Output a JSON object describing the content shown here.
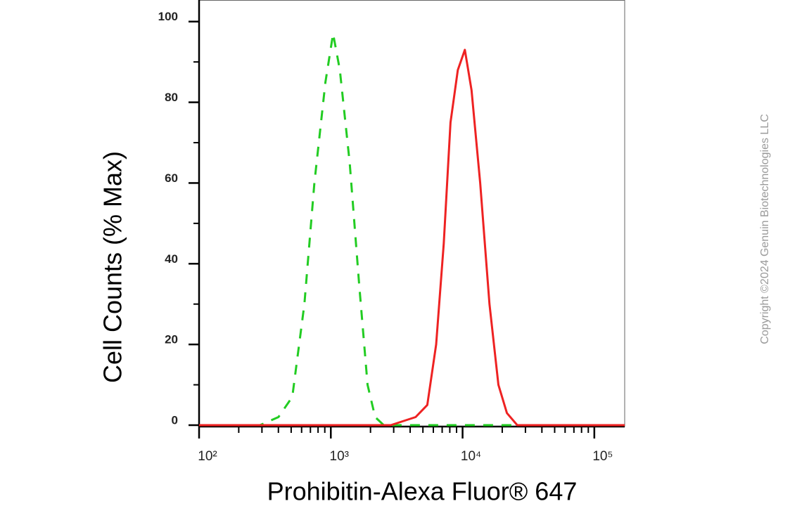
{
  "chart_data": {
    "type": "line",
    "y_label": "Cell Counts (% Max)",
    "x_label": "Prohibitin-Alexa Fluor® 647",
    "watermark": "Copyright ©2024 Genuin Biotechnologies LLC",
    "xscale": "log",
    "xlim": [
      100,
      170000
    ],
    "xticks": [
      {
        "value": 100,
        "label": "10²"
      },
      {
        "value": 1000,
        "label": "10³"
      },
      {
        "value": 10000,
        "label": "10⁴"
      },
      {
        "value": 100000,
        "label": "10⁵"
      }
    ],
    "xminorticks": [
      200,
      300,
      400,
      500,
      600,
      700,
      800,
      900,
      2000,
      3000,
      4000,
      5000,
      6000,
      7000,
      8000,
      9000,
      20000,
      30000,
      40000,
      50000,
      60000,
      70000,
      80000,
      90000
    ],
    "ylim": [
      0,
      105
    ],
    "yticks": [
      0,
      20,
      40,
      60,
      80,
      100
    ],
    "yminorticks": [
      10,
      30,
      50,
      70,
      90
    ],
    "series": [
      {
        "color": "#22cc22",
        "dash": "dashed",
        "x": [
          100,
          290,
          400,
          510,
          630,
          750,
          910,
          1040,
          1170,
          1390,
          1640,
          1900,
          2170,
          2520,
          170000
        ],
        "values": [
          0,
          0,
          2,
          7,
          30,
          60,
          85,
          97,
          88,
          65,
          35,
          10,
          2,
          0,
          0
        ]
      },
      {
        "color": "#ee2222",
        "dash": "solid",
        "x": [
          100,
          2850,
          4400,
          5400,
          6300,
          7200,
          8100,
          9200,
          10400,
          11700,
          13600,
          16000,
          18700,
          21700,
          26000,
          170000
        ],
        "values": [
          0,
          0,
          2,
          5,
          20,
          45,
          75,
          88,
          93,
          83,
          60,
          30,
          10,
          3,
          0,
          0
        ]
      }
    ]
  }
}
